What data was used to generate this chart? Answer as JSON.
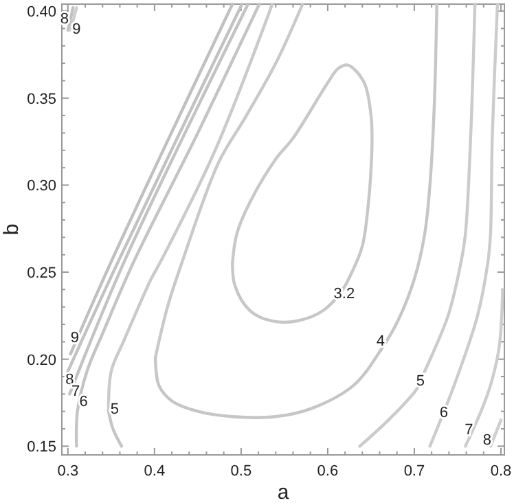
{
  "chart_data": {
    "type": "line",
    "xlabel": "a",
    "ylabel": "b",
    "xlim": [
      0.293,
      0.804
    ],
    "ylim": [
      0.145,
      0.404
    ],
    "xticks": [
      0.3,
      {
        "value": 0.32,
        "label": null
      },
      {
        "value": 0.34,
        "label": null
      },
      {
        "value": 0.36,
        "label": null
      },
      {
        "value": 0.38,
        "label": null
      },
      0.4,
      {
        "value": 0.42,
        "label": null
      },
      {
        "value": 0.44,
        "label": null
      },
      {
        "value": 0.46,
        "label": null
      },
      {
        "value": 0.48,
        "label": null
      },
      0.5,
      {
        "value": 0.52,
        "label": null
      },
      {
        "value": 0.54,
        "label": null
      },
      {
        "value": 0.56,
        "label": null
      },
      {
        "value": 0.58,
        "label": null
      },
      0.6,
      {
        "value": 0.62,
        "label": null
      },
      {
        "value": 0.64,
        "label": null
      },
      {
        "value": 0.66,
        "label": null
      },
      {
        "value": 0.68,
        "label": null
      },
      0.7,
      {
        "value": 0.72,
        "label": null
      },
      {
        "value": 0.74,
        "label": null
      },
      {
        "value": 0.76,
        "label": null
      },
      {
        "value": 0.78,
        "label": null
      },
      0.8
    ],
    "yticks": [
      {
        "value": 0.15,
        "label": "0.15"
      },
      {
        "value": 0.16,
        "label": null
      },
      {
        "value": 0.17,
        "label": null
      },
      {
        "value": 0.18,
        "label": null
      },
      {
        "value": 0.19,
        "label": null
      },
      {
        "value": 0.2,
        "label": "0.20"
      },
      {
        "value": 0.21,
        "label": null
      },
      {
        "value": 0.22,
        "label": null
      },
      {
        "value": 0.23,
        "label": null
      },
      {
        "value": 0.24,
        "label": null
      },
      {
        "value": 0.25,
        "label": "0.25"
      },
      {
        "value": 0.26,
        "label": null
      },
      {
        "value": 0.27,
        "label": null
      },
      {
        "value": 0.28,
        "label": null
      },
      {
        "value": 0.29,
        "label": null
      },
      {
        "value": 0.3,
        "label": "0.30"
      },
      {
        "value": 0.31,
        "label": null
      },
      {
        "value": 0.32,
        "label": null
      },
      {
        "value": 0.33,
        "label": null
      },
      {
        "value": 0.34,
        "label": null
      },
      {
        "value": 0.35,
        "label": "0.35"
      },
      {
        "value": 0.36,
        "label": null
      },
      {
        "value": 0.37,
        "label": null
      },
      {
        "value": 0.38,
        "label": null
      },
      {
        "value": 0.39,
        "label": null
      },
      {
        "value": 0.4,
        "label": "0.40"
      }
    ],
    "grid": false,
    "marker": "none",
    "line_style": "solid",
    "series": [
      {
        "color": "#c8c8c8",
        "x": [
          0.49,
          0.495,
          0.51,
          0.54,
          0.56,
          0.599,
          0.612,
          0.623,
          0.641,
          0.65,
          0.651
        ],
        "values": [
          0.255,
          0.272,
          0.29,
          0.315,
          0.327,
          0.358,
          0.367,
          0.369,
          0.36,
          0.34,
          0.32
        ]
      },
      {
        "color": "#c7c7c7",
        "x": [
          0.49,
          0.493,
          0.51,
          0.535,
          0.565,
          0.595,
          0.616,
          0.628,
          0.64,
          0.648,
          0.651
        ],
        "values": [
          0.255,
          0.242,
          0.228,
          0.222,
          0.222,
          0.228,
          0.239,
          0.25,
          0.265,
          0.295,
          0.32
        ]
      },
      {
        "color": "#c9c9c9",
        "x": [
          0.401,
          0.415,
          0.432,
          0.474,
          0.505,
          0.54,
          0.571
        ],
        "values": [
          0.201,
          0.23,
          0.256,
          0.313,
          0.339,
          0.37,
          0.404
        ]
      },
      {
        "color": "#c6c6c6",
        "x": [
          0.401,
          0.405,
          0.42,
          0.45,
          0.49,
          0.54,
          0.583,
          0.63,
          0.661,
          0.681,
          0.7,
          0.712,
          0.718,
          0.723,
          0.726
        ],
        "values": [
          0.201,
          0.185,
          0.176,
          0.17,
          0.167,
          0.167,
          0.172,
          0.185,
          0.205,
          0.222,
          0.246,
          0.272,
          0.3,
          0.345,
          0.404
        ]
      },
      {
        "color": "#cacaca",
        "x": [
          0.347,
          0.35,
          0.365,
          0.396,
          0.407,
          0.47,
          0.536
        ],
        "values": [
          0.17,
          0.193,
          0.211,
          0.246,
          0.256,
          0.32,
          0.404
        ]
      },
      {
        "color": "#c5c5c5",
        "x": [
          0.347,
          0.352,
          0.362
        ],
        "values": [
          0.17,
          0.16,
          0.15
        ]
      },
      {
        "color": "#cbcbcb",
        "x": [
          0.637,
          0.67,
          0.703,
          0.712,
          0.739,
          0.754,
          0.759,
          0.765,
          0.77
        ],
        "values": [
          0.15,
          0.165,
          0.183,
          0.193,
          0.225,
          0.256,
          0.272,
          0.327,
          0.404
        ]
      },
      {
        "color": "#c4c4c4",
        "x": [
          0.31,
          0.311,
          0.322,
          0.342,
          0.376,
          0.45,
          0.521
        ],
        "values": [
          0.15,
          0.17,
          0.193,
          0.217,
          0.256,
          0.33,
          0.404
        ]
      },
      {
        "color": "#cccccc",
        "x": [
          0.718,
          0.746,
          0.773,
          0.785,
          0.788,
          0.79,
          0.796
        ],
        "values": [
          0.15,
          0.185,
          0.225,
          0.256,
          0.272,
          0.327,
          0.404
        ]
      },
      {
        "color": "#c3c3c3",
        "x": [
          0.302,
          0.365,
          0.508
        ],
        "values": [
          0.18,
          0.256,
          0.404
        ]
      },
      {
        "color": "#cdcdcd",
        "x": [
          0.759,
          0.777,
          0.788,
          0.798,
          0.802
        ],
        "values": [
          0.15,
          0.17,
          0.185,
          0.207,
          0.24
        ]
      },
      {
        "color": "#c2c2c2",
        "x": [
          0.3,
          0.358,
          0.501
        ],
        "values": [
          0.193,
          0.256,
          0.404
        ]
      },
      {
        "color": "#cecece",
        "x": [
          0.788,
          0.8
        ],
        "values": [
          0.15,
          0.165
        ]
      },
      {
        "color": "#c1c1c1",
        "x": [
          0.3,
          0.306
        ],
        "values": [
          0.389,
          0.402
        ]
      },
      {
        "color": "#c0c0c0",
        "x": [
          0.303,
          0.35,
          0.49
        ],
        "values": [
          0.203,
          0.256,
          0.404
        ]
      },
      {
        "color": "#cfcfcf",
        "x": [
          0.303,
          0.31
        ],
        "values": [
          0.389,
          0.402
        ]
      }
    ],
    "annotations": [
      {
        "text": "8",
        "x": 0.296,
        "y": 0.396
      },
      {
        "text": "9",
        "x": 0.31,
        "y": 0.39
      },
      {
        "text": "9",
        "x": 0.308,
        "y": 0.213
      },
      {
        "text": "8",
        "x": 0.302,
        "y": 0.189
      },
      {
        "text": "7",
        "x": 0.309,
        "y": 0.182
      },
      {
        "text": "6",
        "x": 0.318,
        "y": 0.176
      },
      {
        "text": "5",
        "x": 0.354,
        "y": 0.172
      },
      {
        "text": "3.2",
        "x": 0.619,
        "y": 0.238
      },
      {
        "text": "4",
        "x": 0.661,
        "y": 0.211
      },
      {
        "text": "5",
        "x": 0.707,
        "y": 0.188
      },
      {
        "text": "6",
        "x": 0.734,
        "y": 0.17
      },
      {
        "text": "7",
        "x": 0.763,
        "y": 0.16
      },
      {
        "text": "8",
        "x": 0.784,
        "y": 0.154
      }
    ]
  }
}
